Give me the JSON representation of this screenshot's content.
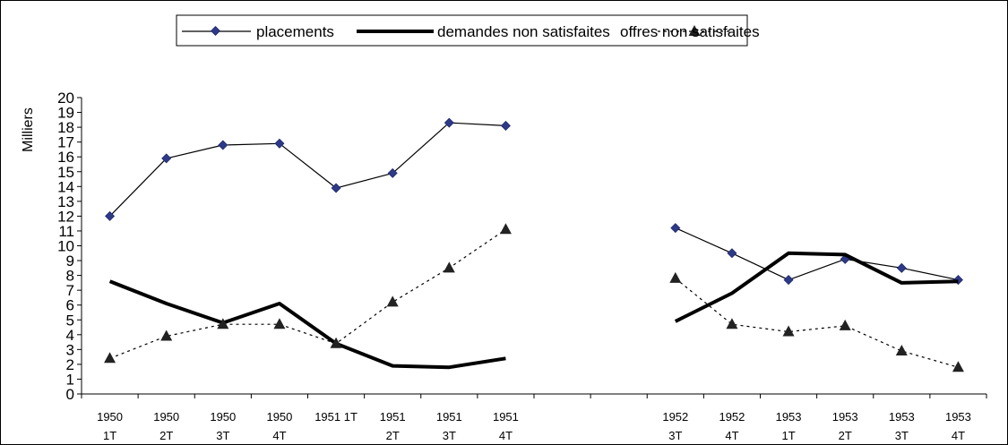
{
  "chart_data": {
    "type": "line",
    "ylabel": "Milliers",
    "ylim": [
      0,
      20
    ],
    "y_ticks": [
      0,
      1,
      2,
      3,
      4,
      5,
      6,
      7,
      8,
      9,
      10,
      11,
      12,
      13,
      14,
      15,
      16,
      17,
      18,
      19,
      20
    ],
    "legend_position": "top",
    "categories": [
      [
        "1950",
        "1T"
      ],
      [
        "1950",
        "2T"
      ],
      [
        "1950",
        "3T"
      ],
      [
        "1950",
        "4T"
      ],
      [
        "1951 1T",
        ""
      ],
      [
        "1951",
        "2T"
      ],
      [
        "1951",
        "3T"
      ],
      [
        "1951",
        "4T"
      ],
      [
        "",
        ""
      ],
      [
        "",
        ""
      ],
      [
        "1952",
        "3T"
      ],
      [
        "1952",
        "4T"
      ],
      [
        "1953",
        "1T"
      ],
      [
        "1953",
        "2T"
      ],
      [
        "1953",
        "3T"
      ],
      [
        "1953",
        "4T"
      ]
    ],
    "series": [
      {
        "name": "placements",
        "style": "thin-solid-diamond",
        "color": "#000000",
        "marker_color": "#2e3a87",
        "values": [
          12.0,
          15.9,
          16.8,
          16.9,
          13.9,
          14.9,
          18.3,
          18.1,
          null,
          null,
          11.2,
          9.5,
          7.7,
          9.1,
          8.5,
          7.7
        ]
      },
      {
        "name": "demandes non satisfaites",
        "style": "thick-solid",
        "color": "#000000",
        "values": [
          7.6,
          6.1,
          4.8,
          6.1,
          3.4,
          1.9,
          1.8,
          2.4,
          null,
          null,
          4.9,
          6.8,
          9.5,
          9.4,
          7.5,
          7.6
        ]
      },
      {
        "name": "offres non satisfaites",
        "style": "dotted-triangle",
        "color": "#000000",
        "values": [
          2.4,
          3.9,
          4.7,
          4.7,
          3.4,
          6.2,
          8.5,
          11.1,
          null,
          null,
          7.8,
          4.7,
          4.2,
          4.6,
          2.9,
          1.8
        ]
      }
    ]
  }
}
